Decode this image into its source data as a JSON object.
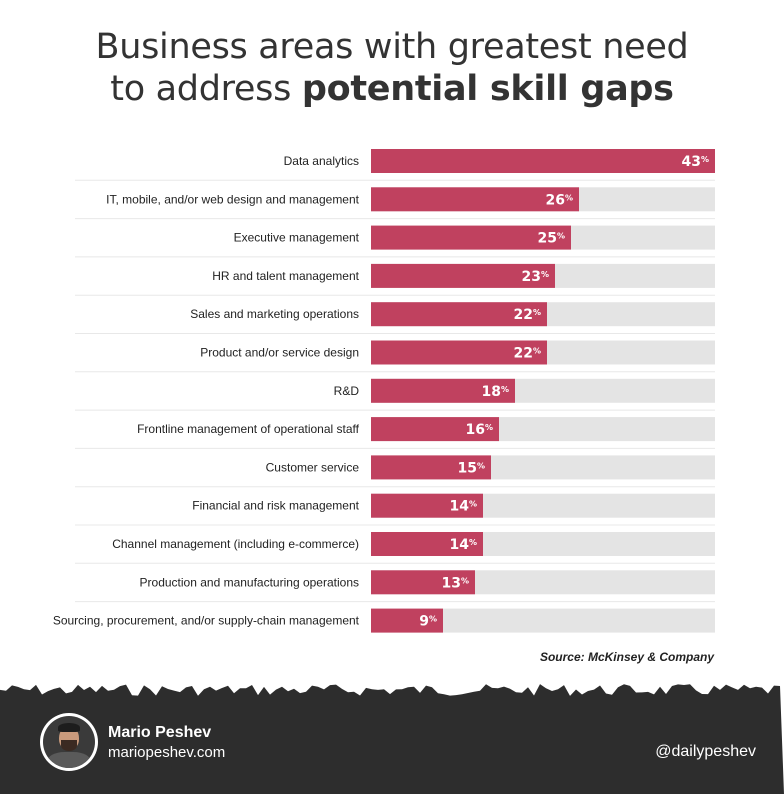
{
  "title": {
    "line1": "Business areas with greatest need",
    "line2_prefix": "to address ",
    "line2_bold": "potential skill gaps"
  },
  "chart_data": {
    "type": "bar",
    "orientation": "horizontal",
    "title": "Business areas with greatest need to address potential skill gaps",
    "unit": "%",
    "xlim": [
      0,
      43
    ],
    "categories": [
      "Data analytics",
      "IT, mobile, and/or web design and management",
      "Executive management",
      "HR and talent management",
      "Sales and marketing operations",
      "Product and/or service design",
      "R&D",
      "Frontline management of operational staff",
      "Customer service",
      "Financial and risk management",
      "Channel management (including e-commerce)",
      "Production and manufacturing operations",
      "Sourcing, procurement, and/or supply-chain management"
    ],
    "values": [
      43,
      26,
      25,
      23,
      22,
      22,
      18,
      16,
      15,
      14,
      14,
      13,
      9
    ],
    "bar_color": "#c0415f",
    "track_color": "#e4e4e4"
  },
  "source": "Source: McKinsey & Company",
  "footer": {
    "author_name": "Mario Peshev",
    "author_site": "mariopeshev.com",
    "handle": "@dailypeshev",
    "background": "#2d2d2d"
  }
}
